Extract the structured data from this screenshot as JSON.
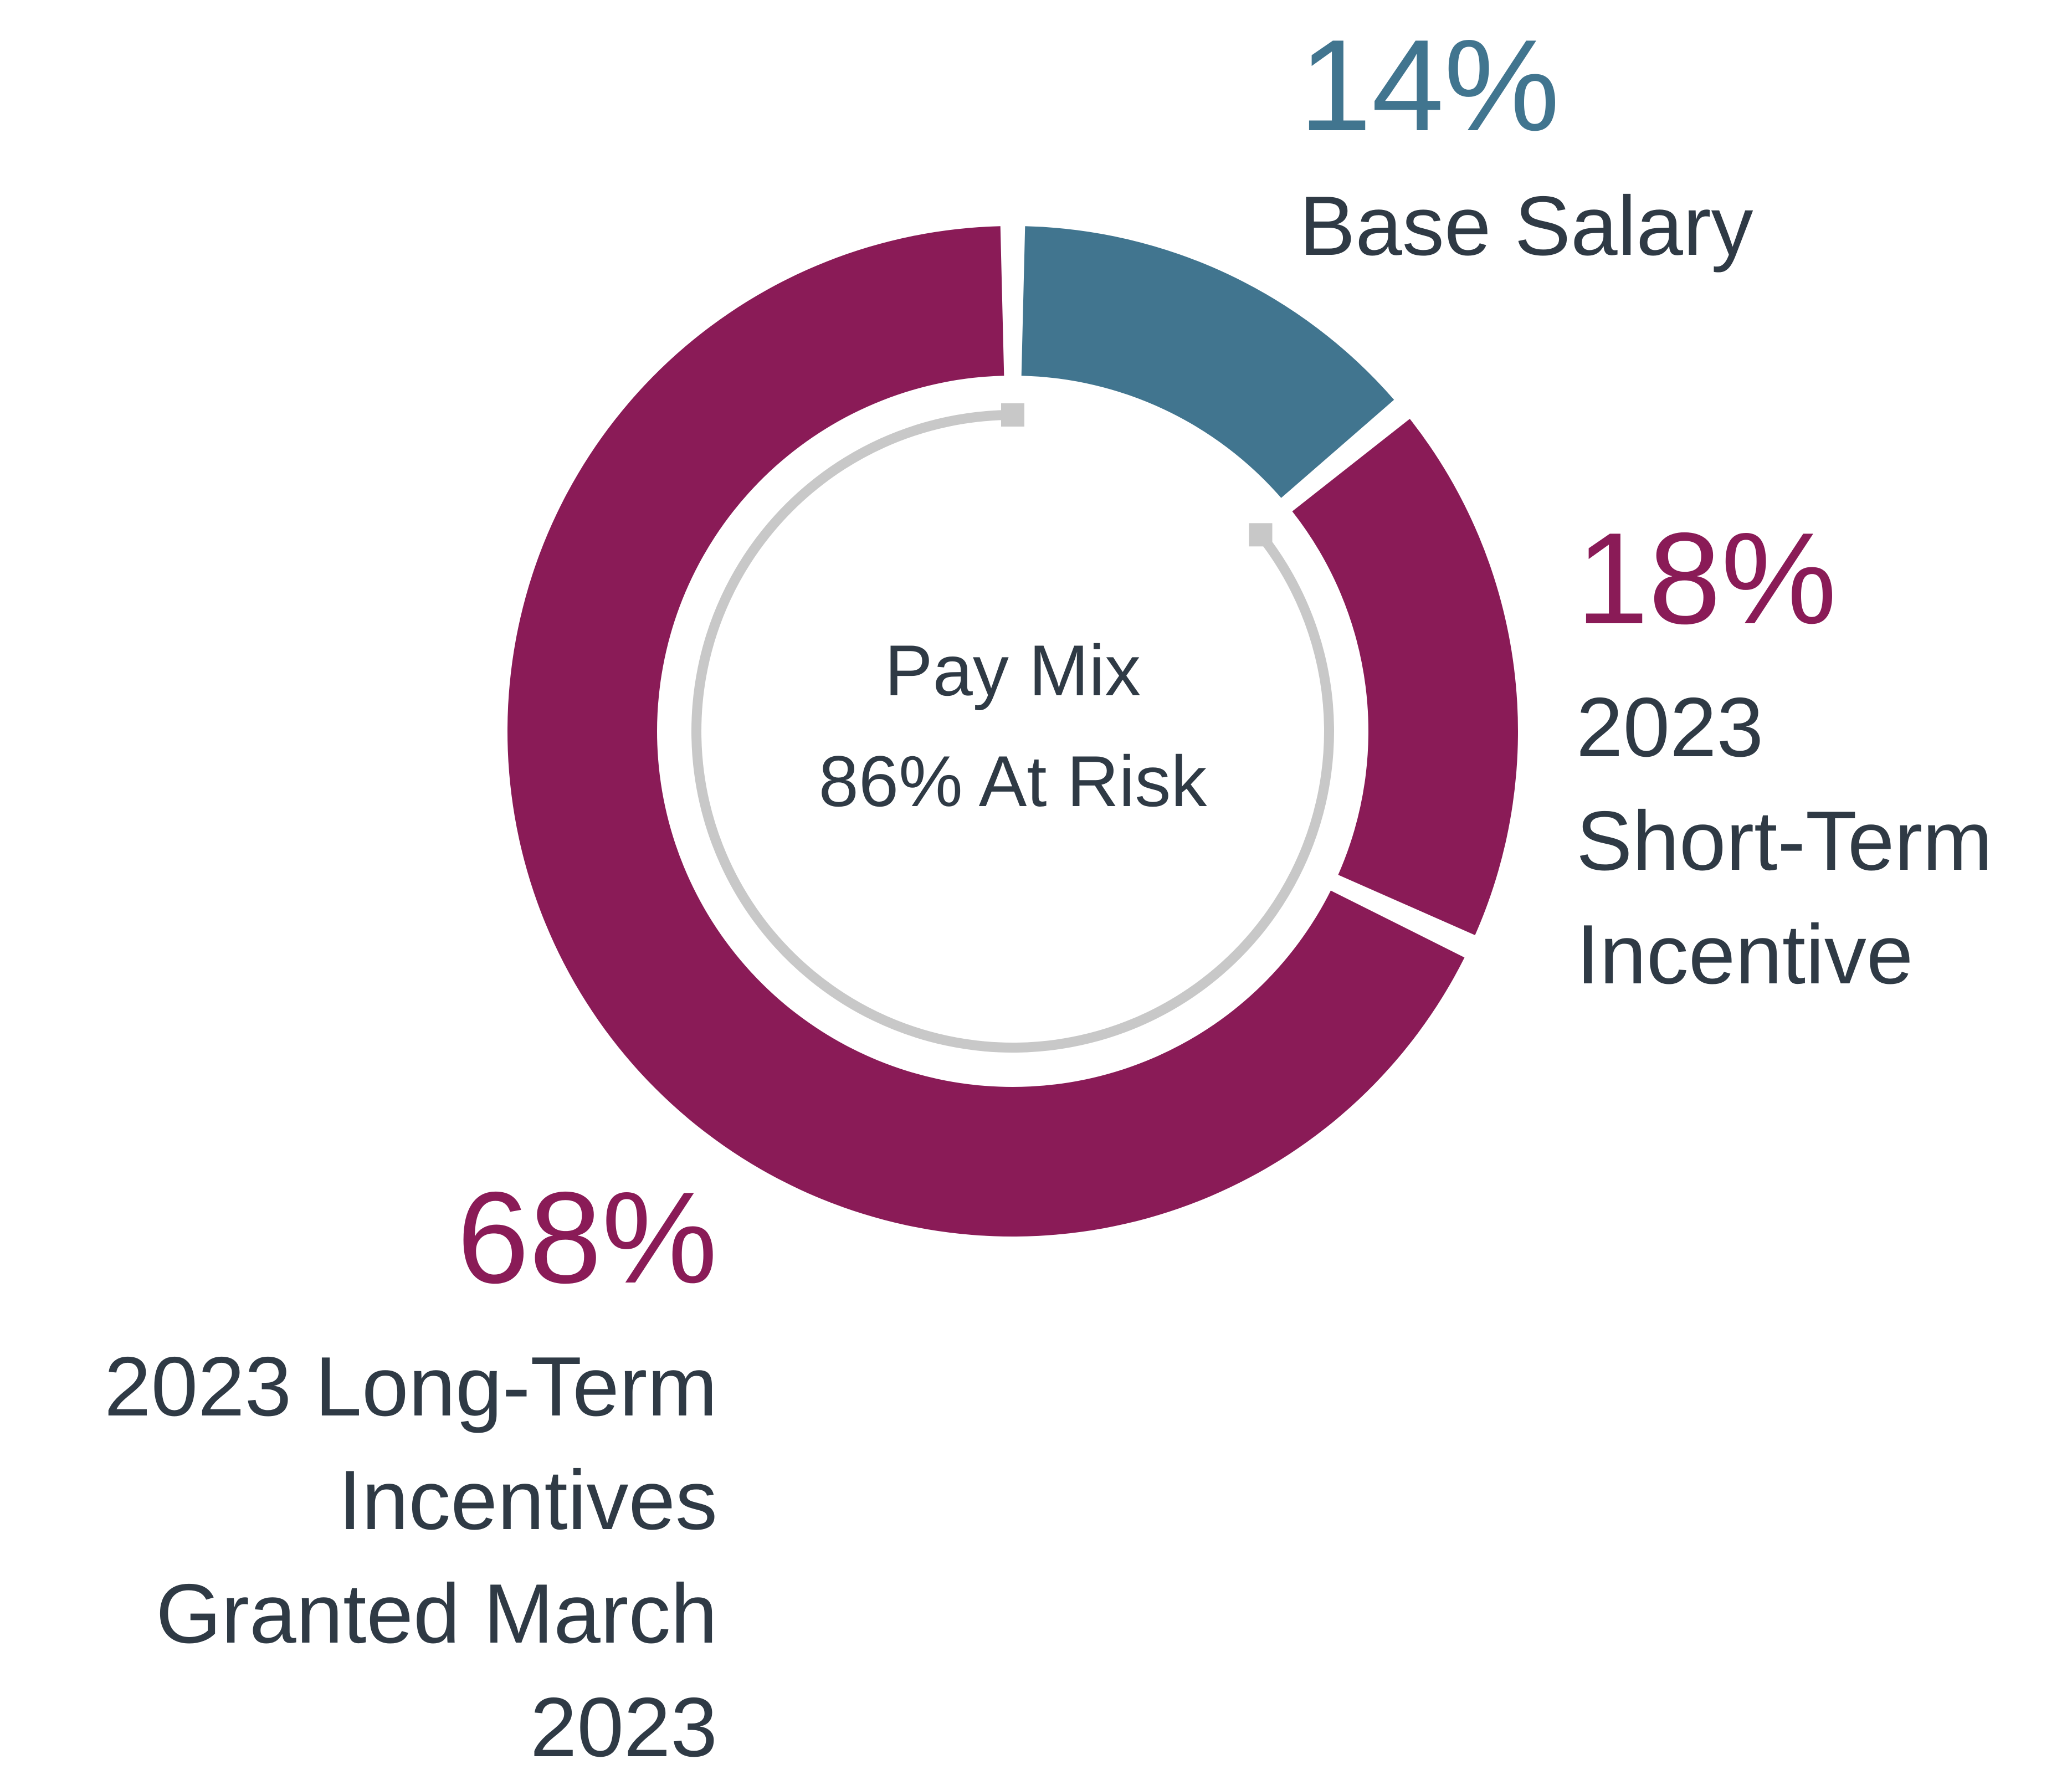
{
  "chart_data": {
    "type": "pie",
    "title": "Pay Mix",
    "subtitle": "86% At Risk",
    "categories": [
      "Base Salary",
      "2023 Short-Term Incentive",
      "2023 Long-Term Incentives Granted March 2023"
    ],
    "values": [
      14,
      18,
      68
    ],
    "value_labels": [
      "14%",
      "18%",
      "68%"
    ],
    "label_lines": [
      [
        "Base Salary"
      ],
      [
        "2023",
        "Short-Term",
        "Incentive"
      ],
      [
        "2023 Long-Term",
        "Incentives",
        "Granted March",
        "2023"
      ]
    ],
    "colors": [
      "#41758f",
      "#8a1b57",
      "#8a1b57"
    ],
    "at_risk_arc_color": "#c8c8c8",
    "text_color": "#2f3a45",
    "legend": "none"
  }
}
